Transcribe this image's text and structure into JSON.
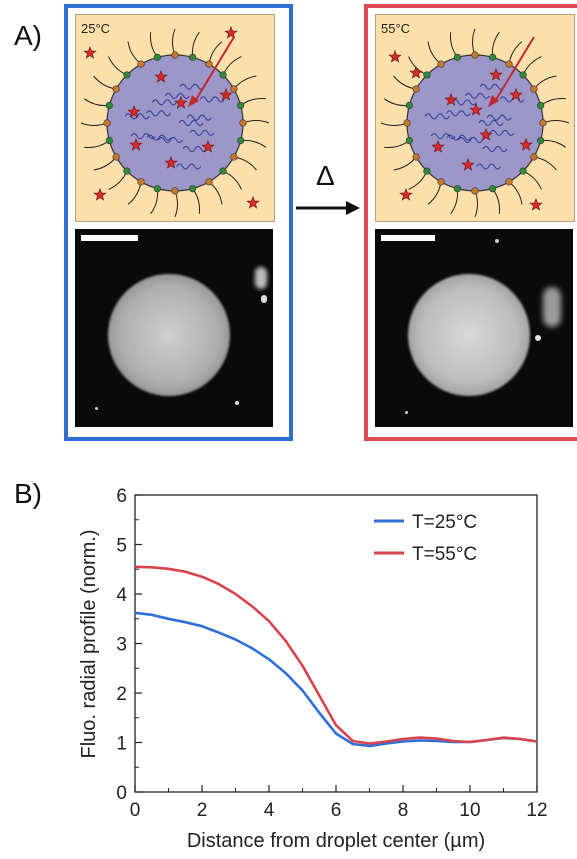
{
  "panel_a": {
    "letter": "A)",
    "left": {
      "temperature": "25°C",
      "frame_color": "#2f6fd0"
    },
    "right": {
      "temperature": "55°C",
      "frame_color": "#dd4a52"
    },
    "arrow_label": "Δ"
  },
  "panel_b": {
    "letter": "B)"
  },
  "chart_data": {
    "type": "line",
    "xlabel": "Distance from droplet center (µm)",
    "ylabel": "Fluo. radial profile (norm.)",
    "xlim": [
      0,
      12
    ],
    "ylim": [
      0,
      6
    ],
    "xticks": [
      0,
      2,
      4,
      6,
      8,
      10,
      12
    ],
    "yticks": [
      0,
      1,
      2,
      3,
      4,
      5,
      6
    ],
    "grid": false,
    "legend_position": "top-right",
    "series": [
      {
        "name": "T=25°C",
        "color": "#2e6fd8",
        "x": [
          0,
          0.5,
          1,
          1.5,
          2,
          2.5,
          3,
          3.5,
          4,
          4.5,
          5,
          5.5,
          6,
          6.5,
          7,
          7.5,
          8,
          8.5,
          9,
          9.5,
          10,
          10.5,
          11,
          11.5,
          12
        ],
        "y": [
          3.62,
          3.58,
          3.5,
          3.43,
          3.35,
          3.22,
          3.08,
          2.9,
          2.68,
          2.4,
          2.05,
          1.6,
          1.18,
          0.97,
          0.93,
          0.98,
          1.02,
          1.04,
          1.03,
          1.01,
          1.01,
          1.05,
          1.09,
          1.07,
          1.02
        ]
      },
      {
        "name": "T=55°C",
        "color": "#d9434b",
        "x": [
          0,
          0.5,
          1,
          1.5,
          2,
          2.5,
          3,
          3.5,
          4,
          4.5,
          5,
          5.5,
          6,
          6.5,
          7,
          7.5,
          8,
          8.5,
          9,
          9.5,
          10,
          10.5,
          11,
          11.5,
          12
        ],
        "y": [
          4.55,
          4.54,
          4.51,
          4.45,
          4.35,
          4.2,
          4.0,
          3.75,
          3.45,
          3.05,
          2.55,
          1.95,
          1.35,
          1.03,
          0.98,
          1.02,
          1.07,
          1.1,
          1.08,
          1.03,
          1.01,
          1.05,
          1.1,
          1.07,
          1.02
        ]
      }
    ]
  }
}
